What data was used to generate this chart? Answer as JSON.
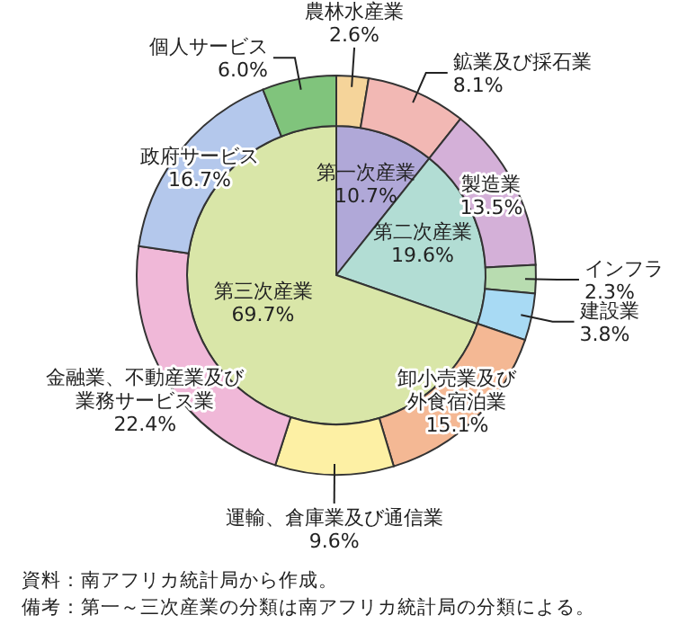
{
  "chart_data": [
    {
      "type": "pie",
      "categories": [
        "第一次産業",
        "第二次産業",
        "第三次産業"
      ],
      "values": [
        10.7,
        19.6,
        69.7
      ],
      "value_labels": [
        "10.7%",
        "19.6%",
        "69.7%"
      ],
      "colors": [
        "#b0a8d8",
        "#b2ddd4",
        "#d9e6a8"
      ]
    },
    {
      "type": "donut",
      "categories": [
        "農林水産業",
        "鉱業及び採石業",
        "製造業",
        "インフラ",
        "建設業",
        "卸小売業及び外食宿泊業",
        "運輸、倉庫業及び通信業",
        "金融業、不動産業及び業務サービス業",
        "政府サービス",
        "個人サービス"
      ],
      "values": [
        2.6,
        8.1,
        13.5,
        2.3,
        3.8,
        15.1,
        9.6,
        22.4,
        16.7,
        6.0
      ],
      "value_labels": [
        "2.6%",
        "8.1%",
        "13.5%",
        "2.3%",
        "3.8%",
        "15.1%",
        "9.6%",
        "22.4%",
        "16.7%",
        "6.0%"
      ],
      "colors": [
        "#f5d49a",
        "#f2b8b4",
        "#d4b0d8",
        "#b8dcb0",
        "#a8daf4",
        "#f4b894",
        "#fdf0a4",
        "#f0b8d8",
        "#b4c8ec",
        "#80c47c"
      ],
      "annotations": [
        "資料：南アフリカ統計局から作成。",
        "備考：第一～三次産業の分類は南アフリカ統計局の分類による。"
      ]
    }
  ]
}
